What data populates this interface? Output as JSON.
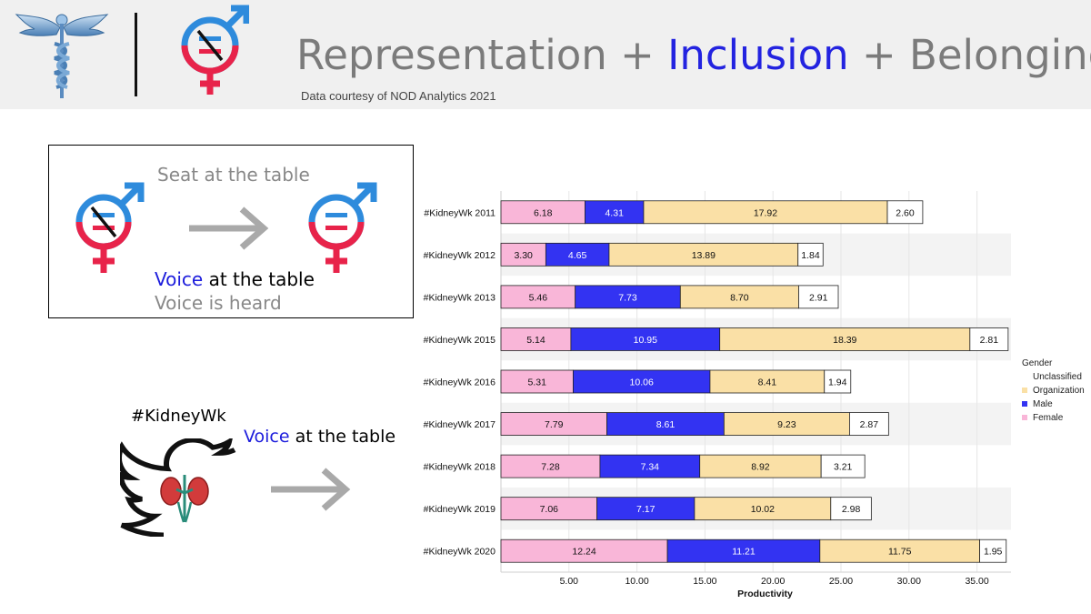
{
  "header": {
    "title_part1": "Representation + ",
    "title_accent": "Inclusion",
    "title_part2": " + Belonging",
    "credit": "Data courtesy of NOD Analytics 2021"
  },
  "seat_panel": {
    "title": "Seat at the table",
    "voice_word": "Voice",
    "voice_rest": " at the table",
    "heard": "Voice is heard"
  },
  "twitter_panel": {
    "hashtag": "#KidneyWk",
    "voice_word": "Voice",
    "voice_rest": " at the table"
  },
  "icons": {
    "caduceus": "caduceus-icon",
    "gender_unequal": "gender-unequal-icon",
    "gender_equal": "gender-equal-icon",
    "arrow": "arrow-right-icon",
    "twitter_bird": "twitter-bird-kidney-icon"
  },
  "colors": {
    "female": "#f9b6d8",
    "male": "#3333f2",
    "organization": "#fae0a6",
    "unclassified": "#ffffff",
    "accent_blue": "#1c1cdc",
    "male_symbol": "#2e8bdc",
    "female_symbol": "#e8234a"
  },
  "chart_data": {
    "type": "bar",
    "orientation": "horizontal",
    "stacked": true,
    "categories": [
      "#KidneyWk 2011",
      "#KidneyWk 2012",
      "#KidneyWk 2013",
      "#KidneyWk 2015",
      "#KidneyWk 2016",
      "#KidneyWk 2017",
      "#KidneyWk 2018",
      "#KidneyWk 2019",
      "#KidneyWk 2020"
    ],
    "series": [
      {
        "name": "Female",
        "values": [
          6.18,
          3.3,
          5.46,
          5.14,
          5.31,
          7.79,
          7.28,
          7.06,
          12.24
        ]
      },
      {
        "name": "Male",
        "values": [
          4.31,
          4.65,
          7.73,
          10.95,
          10.06,
          8.61,
          7.34,
          7.17,
          11.21
        ]
      },
      {
        "name": "Organization",
        "values": [
          17.92,
          13.89,
          8.7,
          18.39,
          8.41,
          9.23,
          8.92,
          10.02,
          11.75
        ]
      },
      {
        "name": "Unclassified",
        "values": [
          2.6,
          1.84,
          2.91,
          2.81,
          1.94,
          2.87,
          3.21,
          2.98,
          1.95
        ]
      }
    ],
    "xlabel": "Productivity",
    "xticks": [
      "5.00",
      "10.00",
      "15.00",
      "20.00",
      "25.00",
      "30.00",
      "35.00"
    ],
    "xlim": [
      0,
      37.5
    ],
    "legend_title": "Gender",
    "legend_entries": [
      "Unclassified",
      "Organization",
      "Male",
      "Female"
    ]
  }
}
